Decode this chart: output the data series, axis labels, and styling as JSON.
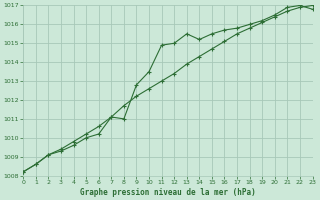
{
  "title": "Graphe pression niveau de la mer (hPa)",
  "background_color": "#cce8d8",
  "grid_color": "#a8c8b8",
  "line_color": "#2d6e35",
  "x_min": 0,
  "x_max": 23,
  "y_min": 1008,
  "y_max": 1017,
  "line1_x": [
    0,
    1,
    2,
    3,
    4,
    5,
    6,
    7,
    8,
    9,
    10,
    11,
    12,
    13,
    14,
    15,
    16,
    17,
    18,
    19,
    20,
    21,
    22,
    23
  ],
  "line1_y": [
    1008.2,
    1008.6,
    1009.1,
    1009.3,
    1009.6,
    1010.0,
    1010.2,
    1011.1,
    1011.0,
    1012.8,
    1013.5,
    1014.9,
    1015.0,
    1015.5,
    1015.2,
    1015.5,
    1015.7,
    1015.8,
    1016.0,
    1016.2,
    1016.5,
    1016.9,
    1017.0,
    1016.8
  ],
  "line2_x": [
    0,
    1,
    2,
    3,
    4,
    5,
    6,
    7,
    8,
    9,
    10,
    11,
    12,
    13,
    14,
    15,
    16,
    17,
    18,
    19,
    20,
    21,
    22,
    23
  ],
  "line2_y": [
    1008.2,
    1008.6,
    1009.1,
    1009.4,
    1009.8,
    1010.2,
    1010.6,
    1011.1,
    1011.7,
    1012.2,
    1012.6,
    1013.0,
    1013.4,
    1013.9,
    1014.3,
    1014.7,
    1015.1,
    1015.5,
    1015.8,
    1016.1,
    1016.4,
    1016.7,
    1016.9,
    1017.0
  ],
  "yticks": [
    1008,
    1009,
    1010,
    1011,
    1012,
    1013,
    1014,
    1015,
    1016,
    1017
  ],
  "xticks": [
    0,
    1,
    2,
    3,
    4,
    5,
    6,
    7,
    8,
    9,
    10,
    11,
    12,
    13,
    14,
    15,
    16,
    17,
    18,
    19,
    20,
    21,
    22,
    23
  ]
}
